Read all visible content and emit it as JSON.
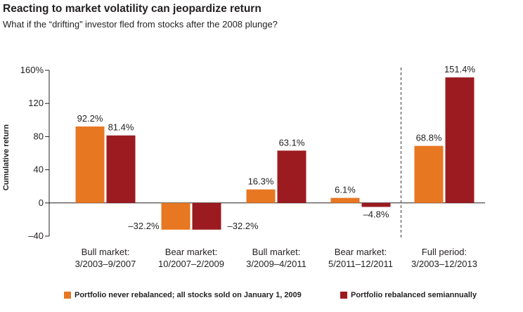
{
  "title": "Reacting to market volatility can jeopardize return",
  "subtitle": "What if the “drifting” investor fled from stocks after the 2008 plunge?",
  "colors": {
    "series1": "#e87722",
    "series2": "#9b1b20",
    "axis": "#231f20",
    "divider": "#555555"
  },
  "chart_data": {
    "type": "bar",
    "title": "Reacting to market volatility can jeopardize return",
    "xlabel": "",
    "ylabel": "Cumulative return",
    "ylim": [
      -40,
      160
    ],
    "yticks": [
      160,
      120,
      80,
      40,
      0,
      -40
    ],
    "ytick_labels": [
      "160%",
      "120",
      "80",
      "40",
      "0",
      "–40"
    ],
    "categories": [
      [
        "Bull market:",
        "3/2003–9/2007"
      ],
      [
        "Bear market:",
        "10/2007–2/2009"
      ],
      [
        "Bull market:",
        "3/2009–4/2011"
      ],
      [
        "Bear market:",
        "5/2011–12/2011"
      ],
      [
        "Full period:",
        "3/2003–12/2013"
      ]
    ],
    "series": [
      {
        "name": "Portfolio never rebalanced; all stocks sold on January 1, 2009",
        "values": [
          92.2,
          -32.2,
          16.3,
          6.1,
          68.8
        ],
        "labels": [
          "92.2%",
          "–32.2%",
          "16.3%",
          "6.1%",
          "68.8%"
        ]
      },
      {
        "name": "Portfolio rebalanced semiannually",
        "values": [
          81.4,
          -32.2,
          63.1,
          -4.8,
          151.4
        ],
        "labels": [
          "81.4%",
          "–32.2%",
          "63.1%",
          "–4.8%",
          "151.4%"
        ]
      }
    ],
    "divider_after_category": 3,
    "legend_position": "bottom"
  }
}
